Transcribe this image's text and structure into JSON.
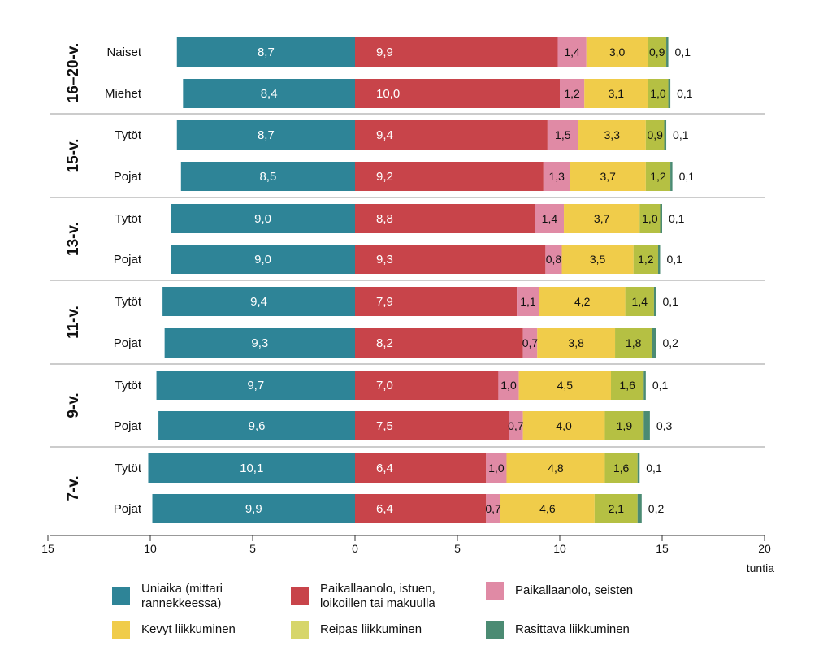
{
  "chart_data": {
    "type": "bar",
    "orientation": "horizontal-diverging",
    "x_ticks": [
      "15",
      "10",
      "5",
      "0",
      "5",
      "10",
      "15",
      "20"
    ],
    "x_unit": "tuntia",
    "xlim": [
      -15,
      20
    ],
    "series": [
      {
        "name": "Uniaika (mittari\nrannekkeessa)",
        "color": "#2e8497",
        "side": "left"
      },
      {
        "name": "Paikallaanolo, istuen,\nloikoillen tai makuulla",
        "color": "#c8444a",
        "side": "right"
      },
      {
        "name": "Paikallaanolo, seisten",
        "color": "#e08aa5",
        "side": "right"
      },
      {
        "name": "Kevyt liikkuminen",
        "color": "#f0cc4a",
        "side": "right"
      },
      {
        "name": "Reipas liikkuminen",
        "color": "#b5c043",
        "side": "right"
      },
      {
        "name": "Rasittava liikkuminen",
        "color": "#4b8b73",
        "side": "right"
      }
    ],
    "groups": [
      {
        "label": "16–20-v.",
        "rows": [
          {
            "label": "Naiset",
            "values": [
              8.7,
              9.9,
              1.4,
              3.0,
              0.9,
              0.1
            ],
            "texts": [
              "8,7",
              "9,9",
              "1,4",
              "3,0",
              "0,9",
              "0,1"
            ]
          },
          {
            "label": "Miehet",
            "values": [
              8.4,
              10.0,
              1.2,
              3.1,
              1.0,
              0.1
            ],
            "texts": [
              "8,4",
              "10,0",
              "1,2",
              "3,1",
              "1,0",
              "0,1"
            ]
          }
        ]
      },
      {
        "label": "15-v.",
        "rows": [
          {
            "label": "Tytöt",
            "values": [
              8.7,
              9.4,
              1.5,
              3.3,
              0.9,
              0.1
            ],
            "texts": [
              "8,7",
              "9,4",
              "1,5",
              "3,3",
              "0,9",
              "0,1"
            ]
          },
          {
            "label": "Pojat",
            "values": [
              8.5,
              9.2,
              1.3,
              3.7,
              1.2,
              0.1
            ],
            "texts": [
              "8,5",
              "9,2",
              "1,3",
              "3,7",
              "1,2",
              "0,1"
            ]
          }
        ]
      },
      {
        "label": "13-v.",
        "rows": [
          {
            "label": "Tytöt",
            "values": [
              9.0,
              8.8,
              1.4,
              3.7,
              1.0,
              0.1
            ],
            "texts": [
              "9,0",
              "8,8",
              "1,4",
              "3,7",
              "1,0",
              "0,1"
            ]
          },
          {
            "label": "Pojat",
            "values": [
              9.0,
              9.3,
              0.8,
              3.5,
              1.2,
              0.1
            ],
            "texts": [
              "9,0",
              "9,3",
              "0,8",
              "3,5",
              "1,2",
              "0,1"
            ]
          }
        ]
      },
      {
        "label": "11-v.",
        "rows": [
          {
            "label": "Tytöt",
            "values": [
              9.4,
              7.9,
              1.1,
              4.2,
              1.4,
              0.1
            ],
            "texts": [
              "9,4",
              "7,9",
              "1,1",
              "4,2",
              "1,4",
              "0,1"
            ]
          },
          {
            "label": "Pojat",
            "values": [
              9.3,
              8.2,
              0.7,
              3.8,
              1.8,
              0.2
            ],
            "texts": [
              "9,3",
              "8,2",
              "0,7",
              "3,8",
              "1,8",
              "0,2"
            ]
          }
        ]
      },
      {
        "label": "9-v.",
        "rows": [
          {
            "label": "Tytöt",
            "values": [
              9.7,
              7.0,
              1.0,
              4.5,
              1.6,
              0.1
            ],
            "texts": [
              "9,7",
              "7,0",
              "1,0",
              "4,5",
              "1,6",
              "0,1"
            ]
          },
          {
            "label": "Pojat",
            "values": [
              9.6,
              7.5,
              0.7,
              4.0,
              1.9,
              0.3
            ],
            "texts": [
              "9,6",
              "7,5",
              "0,7",
              "4,0",
              "1,9",
              "0,3"
            ]
          }
        ]
      },
      {
        "label": "7-v.",
        "rows": [
          {
            "label": "Tytöt",
            "values": [
              10.1,
              6.4,
              1.0,
              4.8,
              1.6,
              0.1
            ],
            "texts": [
              "10,1",
              "6,4",
              "1,0",
              "4,8",
              "1,6",
              "0,1"
            ]
          },
          {
            "label": "Pojat",
            "values": [
              9.9,
              6.4,
              0.7,
              4.6,
              2.1,
              0.2
            ],
            "texts": [
              "9,9",
              "6,4",
              "0,7",
              "4,6",
              "2,1",
              "0,2"
            ]
          }
        ]
      }
    ]
  }
}
